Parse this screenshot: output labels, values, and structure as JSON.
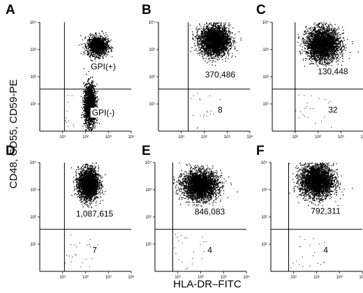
{
  "chart_data": {
    "type": "scatter",
    "xlabel": "HLA-DR–FITC",
    "ylabel": "CD48, CD55, CD59-PE",
    "x_scale": "log",
    "y_scale": "log",
    "xlim": [
      1,
      10000
    ],
    "ylim": [
      1,
      10000
    ],
    "x_ticks": [
      "10¹",
      "10²",
      "10³",
      "10⁴"
    ],
    "y_ticks": [
      "10⁴",
      "10³",
      "10²",
      "10¹"
    ],
    "grid": false,
    "panels": [
      {
        "letter": "A",
        "gate": {
          "x": 12,
          "y": 35
        },
        "clusters": [
          {
            "cx": 330,
            "cy": 1400,
            "sx": 0.22,
            "sy": 0.18,
            "n": 1400
          },
          {
            "cx": 150,
            "cy": 9,
            "sx": 0.13,
            "sy": 0.38,
            "n": 2000
          }
        ],
        "labels": [
          {
            "text": "GPI(+)",
            "x": 600,
            "y": 200
          },
          {
            "text": "GPI(-)",
            "x": 600,
            "y": 4
          }
        ]
      },
      {
        "letter": "B",
        "gate": {
          "x": 20,
          "y": 35
        },
        "clusters": [
          {
            "cx": 280,
            "cy": 2200,
            "sx": 0.32,
            "sy": 0.27,
            "n": 3200
          }
        ],
        "labels": [
          {
            "text": "370,486",
            "x": 500,
            "y": 100
          },
          {
            "text": "8",
            "x": 500,
            "y": 5
          }
        ]
      },
      {
        "letter": "C",
        "gate": {
          "x": 10,
          "y": 35
        },
        "clusters": [
          {
            "cx": 160,
            "cy": 1600,
            "sx": 0.36,
            "sy": 0.3,
            "n": 3200
          }
        ],
        "labels": [
          {
            "text": "130,448",
            "x": 450,
            "y": 130
          },
          {
            "text": "32",
            "x": 450,
            "y": 5
          }
        ]
      },
      {
        "letter": "D",
        "gate": {
          "x": 12,
          "y": 35
        },
        "clusters": [
          {
            "cx": 130,
            "cy": 1700,
            "sx": 0.22,
            "sy": 0.28,
            "n": 2800
          }
        ],
        "labels": [
          {
            "text": "1,087,615",
            "x": 250,
            "y": 110
          },
          {
            "text": "7",
            "x": 250,
            "y": 5
          }
        ]
      },
      {
        "letter": "E",
        "gate": {
          "x": 6,
          "y": 35
        },
        "clusters": [
          {
            "cx": 90,
            "cy": 1500,
            "sx": 0.38,
            "sy": 0.26,
            "n": 3200
          }
        ],
        "labels": [
          {
            "text": "846,083",
            "x": 250,
            "y": 130
          },
          {
            "text": "4",
            "x": 250,
            "y": 5
          }
        ]
      },
      {
        "letter": "F",
        "gate": {
          "x": 6,
          "y": 35
        },
        "clusters": [
          {
            "cx": 100,
            "cy": 2200,
            "sx": 0.36,
            "sy": 0.3,
            "n": 3200
          }
        ],
        "labels": [
          {
            "text": "792,311",
            "x": 250,
            "y": 140
          },
          {
            "text": "4",
            "x": 250,
            "y": 5
          }
        ]
      }
    ]
  }
}
